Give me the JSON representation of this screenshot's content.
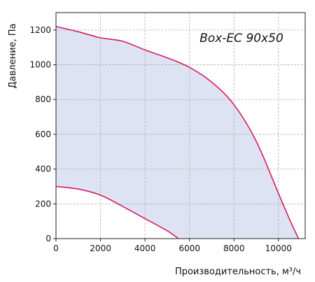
{
  "chart_data": {
    "type": "line",
    "title": "Box-EC 90x50",
    "xlabel": "Производительность, м³/ч",
    "ylabel": "Давление, Па",
    "xlim": [
      0,
      11200
    ],
    "ylim": [
      0,
      1300
    ],
    "xticks": [
      0,
      2000,
      4000,
      6000,
      8000,
      10000
    ],
    "yticks": [
      0,
      200,
      400,
      600,
      800,
      1000,
      1200
    ],
    "grid": true,
    "fill_color": "#dde3f3",
    "line_color": "#d81b60",
    "series": [
      {
        "x": [
          0,
          1000,
          2000,
          3000,
          4000,
          5000,
          6000,
          7000,
          8000,
          9000,
          10000,
          10500,
          10900
        ],
        "values": [
          1220,
          1190,
          1155,
          1135,
          1085,
          1040,
          985,
          900,
          770,
          560,
          260,
          110,
          0
        ]
      },
      {
        "x": [
          0,
          1000,
          2000,
          3000,
          4000,
          5000,
          5500
        ],
        "values": [
          300,
          285,
          250,
          185,
          115,
          45,
          0
        ]
      }
    ]
  }
}
